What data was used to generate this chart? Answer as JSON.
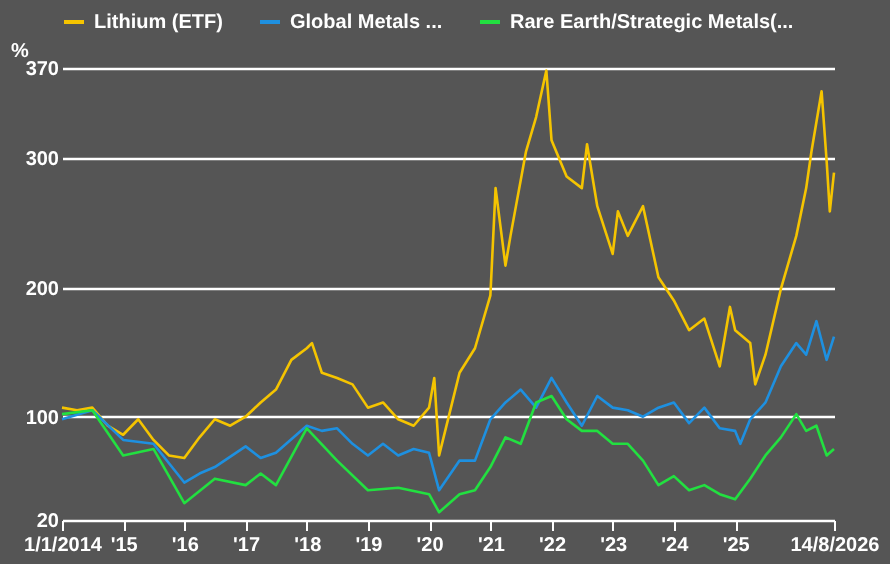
{
  "chart_data": {
    "type": "line",
    "ylabel": "%",
    "legend": "top",
    "grid": "y",
    "line_style": "solid",
    "marker": "none",
    "xlim": [
      "2014-01-01",
      "2026-08-14"
    ],
    "ylim": [
      20,
      370
    ],
    "yticks": [
      20,
      100,
      200,
      300,
      370
    ],
    "xticks": [
      {
        "value": "2014-01-01",
        "label": "1/1/2014"
      },
      {
        "value": "2015-01-01",
        "label": "'15"
      },
      {
        "value": "2016-01-01",
        "label": "'16"
      },
      {
        "value": "2017-01-01",
        "label": "'17"
      },
      {
        "value": "2018-01-01",
        "label": "'18"
      },
      {
        "value": "2019-01-01",
        "label": "'19"
      },
      {
        "value": "2020-01-01",
        "label": "'20"
      },
      {
        "value": "2021-01-01",
        "label": "'21"
      },
      {
        "value": "2022-01-01",
        "label": "'22"
      },
      {
        "value": "2023-01-01",
        "label": "'23"
      },
      {
        "value": "2024-01-01",
        "label": "'24"
      },
      {
        "value": "2025-01-01",
        "label": "'25"
      },
      {
        "value": "2026-08-14",
        "label": "14/8/2026"
      }
    ],
    "series": [
      {
        "name": "Lithium (ETF)",
        "color": "#f5c400",
        "x": [
          "2014-01-01",
          "2014-04",
          "2014-07",
          "2014-10",
          "2015-01",
          "2015-04",
          "2015-07",
          "2015-10",
          "2016-01",
          "2016-04",
          "2016-07",
          "2016-10",
          "2017-01",
          "2017-04",
          "2017-07",
          "2017-10",
          "2018-01",
          "2018-02",
          "2018-04",
          "2018-07",
          "2018-10",
          "2019-01",
          "2019-04",
          "2019-07",
          "2019-10",
          "2020-01",
          "2020-02",
          "2020-03",
          "2020-05",
          "2020-07",
          "2020-10",
          "2021-01",
          "2021-02",
          "2021-04",
          "2021-05",
          "2021-08",
          "2021-10",
          "2021-12",
          "2022-01",
          "2022-04",
          "2022-07",
          "2022-08",
          "2022-10",
          "2023-01",
          "2023-02",
          "2023-04",
          "2023-07",
          "2023-10",
          "2024-01",
          "2024-04",
          "2024-07",
          "2024-10",
          "2024-12",
          "2025-01",
          "2025-04",
          "2025-05",
          "2025-07",
          "2025-10",
          "2026-01",
          "2026-03",
          "2026-04",
          "2026-06",
          "2026-07",
          "2026-07-20",
          "2026-08-14"
        ],
        "values": [
          107,
          105,
          107,
          93,
          86,
          98,
          82,
          70,
          68,
          84,
          98,
          93,
          100,
          111,
          121,
          144,
          153,
          157,
          134,
          130,
          125,
          107,
          111,
          98,
          93,
          107,
          130,
          70,
          102,
          134,
          153,
          194,
          277,
          217,
          240,
          305,
          332,
          368,
          314,
          286,
          277,
          311,
          263,
          226,
          259,
          240,
          263,
          208,
          190,
          167,
          176,
          139,
          185,
          167,
          157,
          125,
          148,
          199,
          240,
          277,
          305,
          352,
          298,
          259,
          289
        ]
      },
      {
        "name": "Global Metals ...",
        "color": "#1e90e0",
        "x": [
          "2014-01-01",
          "2014-07",
          "2015-01",
          "2015-07",
          "2016-01",
          "2016-04",
          "2016-07",
          "2017-01",
          "2017-04",
          "2017-07",
          "2018-01",
          "2018-04",
          "2018-07",
          "2018-10",
          "2019-01",
          "2019-04",
          "2019-07",
          "2019-10",
          "2020-01",
          "2020-03",
          "2020-07",
          "2020-10",
          "2021-01",
          "2021-04",
          "2021-07",
          "2021-10",
          "2022-01",
          "2022-04",
          "2022-07",
          "2022-10",
          "2023-01",
          "2023-04",
          "2023-07",
          "2023-10",
          "2024-01",
          "2024-04",
          "2024-07",
          "2024-10",
          "2025-01",
          "2025-02",
          "2025-04",
          "2025-07",
          "2025-10",
          "2026-01",
          "2026-03",
          "2026-05",
          "2026-07",
          "2026-08-14"
        ],
        "values": [
          98,
          105,
          82,
          79,
          49,
          56,
          61,
          77,
          68,
          72,
          93,
          89,
          91,
          79,
          70,
          79,
          70,
          75,
          72,
          43,
          66,
          66,
          98,
          111,
          121,
          107,
          130,
          111,
          93,
          116,
          107,
          105,
          100,
          107,
          111,
          95,
          107,
          91,
          89,
          79,
          98,
          111,
          139,
          157,
          148,
          174,
          144,
          162
        ]
      },
      {
        "name": "Rare Earth/Strategic Metals(...",
        "color": "#22e040",
        "x": [
          "2014-01-01",
          "2014-07",
          "2015-01",
          "2015-07",
          "2016-01",
          "2016-07",
          "2017-01",
          "2017-04",
          "2017-07",
          "2018-01",
          "2018-07",
          "2019-01",
          "2019-07",
          "2020-01",
          "2020-03",
          "2020-07",
          "2020-10",
          "2021-01",
          "2021-04",
          "2021-07",
          "2021-10",
          "2022-01",
          "2022-04",
          "2022-07",
          "2022-10",
          "2023-01",
          "2023-04",
          "2023-07",
          "2023-10",
          "2024-01",
          "2024-04",
          "2024-07",
          "2024-10",
          "2025-01",
          "2025-04",
          "2025-07",
          "2025-10",
          "2026-01",
          "2026-03",
          "2026-05",
          "2026-07",
          "2026-08-14"
        ],
        "values": [
          102,
          105,
          70,
          75,
          33,
          52,
          47,
          56,
          47,
          91,
          66,
          43,
          45,
          40,
          26,
          40,
          43,
          61,
          84,
          79,
          111,
          116,
          98,
          89,
          89,
          79,
          79,
          66,
          47,
          54,
          43,
          47,
          40,
          36,
          52,
          70,
          84,
          102,
          89,
          93,
          70,
          75
        ]
      }
    ]
  }
}
